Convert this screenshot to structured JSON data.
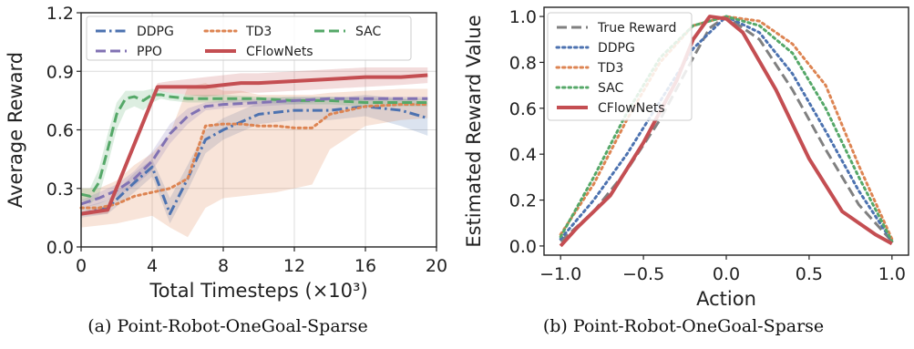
{
  "captions": [
    "(a) Point-Robot-OneGoal-Sparse",
    "(b) Point-Robot-OneGoal-Sparse"
  ],
  "colors": {
    "DDPG": "#4c72b0",
    "TD3": "#dd8452",
    "SAC": "#55a868",
    "PPO": "#8172b3",
    "CFlowNets": "#c44e52",
    "True Reward": "#808080"
  },
  "chart_data": [
    {
      "type": "line",
      "xlabel": "Total Timesteps (×10³)",
      "ylabel": "Average Reward",
      "xlim": [
        0,
        20
      ],
      "ylim": [
        0,
        1.2
      ],
      "xticks": [
        0,
        4,
        8,
        12,
        16,
        20
      ],
      "yticks": [
        0.0,
        0.3,
        0.6,
        0.9,
        1.2
      ],
      "xtick_labels": [
        "0",
        "4",
        "8",
        "12",
        "16",
        "20"
      ],
      "ytick_labels": [
        "0.0",
        "0.3",
        "0.6",
        "0.9",
        "1.2"
      ],
      "grid": true,
      "legend": "top",
      "series": [
        {
          "name": "DDPG",
          "dash": "dashdot",
          "x": [
            0,
            1.5,
            3,
            4,
            5,
            6,
            7,
            8,
            10,
            12,
            14,
            16,
            18,
            19.5
          ],
          "y": [
            0.17,
            0.2,
            0.33,
            0.41,
            0.17,
            0.35,
            0.55,
            0.6,
            0.68,
            0.7,
            0.7,
            0.72,
            0.7,
            0.66
          ],
          "band_upper": [
            0.2,
            0.24,
            0.38,
            0.45,
            0.25,
            0.42,
            0.6,
            0.66,
            0.74,
            0.76,
            0.76,
            0.78,
            0.76,
            0.74
          ],
          "band_lower": [
            0.15,
            0.17,
            0.28,
            0.36,
            0.12,
            0.29,
            0.48,
            0.55,
            0.63,
            0.65,
            0.65,
            0.67,
            0.62,
            0.57
          ]
        },
        {
          "name": "TD3",
          "dash": "dotted",
          "x": [
            0,
            1,
            2,
            3,
            4,
            5,
            6,
            7,
            8,
            9,
            10,
            11,
            12,
            13,
            14,
            16,
            18,
            19.5
          ],
          "y": [
            0.2,
            0.2,
            0.22,
            0.26,
            0.28,
            0.3,
            0.35,
            0.62,
            0.63,
            0.63,
            0.62,
            0.62,
            0.61,
            0.61,
            0.68,
            0.72,
            0.73,
            0.73
          ],
          "band_upper": [
            0.3,
            0.3,
            0.34,
            0.42,
            0.48,
            0.58,
            0.82,
            0.84,
            0.8,
            0.8,
            0.78,
            0.78,
            0.78,
            0.78,
            0.79,
            0.8,
            0.81,
            0.81
          ],
          "band_lower": [
            0.1,
            0.11,
            0.12,
            0.14,
            0.16,
            0.1,
            0.05,
            0.2,
            0.25,
            0.26,
            0.27,
            0.28,
            0.3,
            0.32,
            0.5,
            0.62,
            0.65,
            0.66
          ]
        },
        {
          "name": "SAC",
          "dash": "dashed",
          "x": [
            0,
            0.5,
            1,
            1.5,
            2,
            2.5,
            3,
            3.5,
            4,
            4.5,
            5,
            6,
            8,
            10,
            12,
            14,
            16,
            18,
            19.5
          ],
          "y": [
            0.27,
            0.26,
            0.33,
            0.5,
            0.68,
            0.76,
            0.77,
            0.75,
            0.78,
            0.78,
            0.77,
            0.76,
            0.76,
            0.76,
            0.75,
            0.75,
            0.74,
            0.74,
            0.74
          ],
          "band_upper": [
            0.3,
            0.3,
            0.4,
            0.58,
            0.74,
            0.8,
            0.8,
            0.8,
            0.81,
            0.8,
            0.79,
            0.78,
            0.78,
            0.77,
            0.77,
            0.77,
            0.76,
            0.76,
            0.76
          ],
          "band_lower": [
            0.24,
            0.22,
            0.26,
            0.42,
            0.6,
            0.7,
            0.72,
            0.7,
            0.74,
            0.76,
            0.75,
            0.74,
            0.74,
            0.74,
            0.73,
            0.73,
            0.72,
            0.72,
            0.72
          ]
        },
        {
          "name": "PPO",
          "dash": "dashed",
          "x": [
            0,
            1,
            2,
            3,
            4,
            5,
            6,
            7,
            8,
            10,
            12,
            14,
            16,
            18,
            19.5
          ],
          "y": [
            0.22,
            0.25,
            0.29,
            0.35,
            0.44,
            0.58,
            0.67,
            0.72,
            0.73,
            0.74,
            0.75,
            0.76,
            0.76,
            0.76,
            0.76
          ],
          "band_upper": [
            0.24,
            0.28,
            0.32,
            0.39,
            0.49,
            0.63,
            0.71,
            0.74,
            0.75,
            0.76,
            0.77,
            0.77,
            0.77,
            0.77,
            0.77
          ],
          "band_lower": [
            0.2,
            0.22,
            0.26,
            0.31,
            0.39,
            0.53,
            0.63,
            0.7,
            0.71,
            0.72,
            0.73,
            0.75,
            0.75,
            0.75,
            0.75
          ]
        },
        {
          "name": "CFlowNets",
          "dash": "solid",
          "x": [
            0,
            1.5,
            4.3,
            5,
            6,
            7,
            8,
            9,
            10,
            12,
            14,
            16,
            18,
            19.5
          ],
          "y": [
            0.17,
            0.19,
            0.82,
            0.82,
            0.82,
            0.82,
            0.83,
            0.84,
            0.84,
            0.85,
            0.86,
            0.87,
            0.87,
            0.88
          ],
          "band_upper": [
            0.18,
            0.21,
            0.84,
            0.85,
            0.86,
            0.87,
            0.88,
            0.89,
            0.89,
            0.9,
            0.91,
            0.92,
            0.92,
            0.92
          ],
          "band_lower": [
            0.16,
            0.17,
            0.8,
            0.79,
            0.78,
            0.77,
            0.78,
            0.79,
            0.79,
            0.8,
            0.81,
            0.82,
            0.83,
            0.84
          ]
        }
      ]
    },
    {
      "type": "line",
      "xlabel": "Action",
      "ylabel": "Estimated Reward Value",
      "xlim": [
        -1.1,
        1.1
      ],
      "ylim": [
        -0.04,
        1.04
      ],
      "xticks": [
        -1.0,
        -0.5,
        0.0,
        0.5,
        1.0
      ],
      "yticks": [
        0.0,
        0.2,
        0.4,
        0.6,
        0.8,
        1.0
      ],
      "xtick_labels": [
        "−1.0",
        "−0.5",
        "0.0",
        "0.5",
        "1.0"
      ],
      "ytick_labels": [
        "0.0",
        "0.2",
        "0.4",
        "0.6",
        "0.8",
        "1.0"
      ],
      "grid": false,
      "legend": "top-left",
      "series": [
        {
          "name": "True Reward",
          "dash": "dashed",
          "x": [
            -1,
            -0.8,
            -0.6,
            -0.4,
            -0.2,
            -0.1,
            0,
            0.2,
            0.4,
            0.6,
            0.8,
            1
          ],
          "y": [
            0.02,
            0.15,
            0.33,
            0.55,
            0.82,
            0.95,
            1.0,
            0.9,
            0.68,
            0.42,
            0.18,
            0.02
          ]
        },
        {
          "name": "DDPG",
          "dash": "dotted",
          "x": [
            -1,
            -0.8,
            -0.6,
            -0.4,
            -0.2,
            0,
            0.2,
            0.4,
            0.6,
            0.8,
            1
          ],
          "y": [
            0.03,
            0.2,
            0.4,
            0.63,
            0.86,
            1.0,
            0.93,
            0.75,
            0.5,
            0.24,
            0.02
          ]
        },
        {
          "name": "TD3",
          "dash": "dotted",
          "x": [
            -1,
            -0.8,
            -0.6,
            -0.4,
            -0.2,
            0,
            0.2,
            0.4,
            0.6,
            0.8,
            1
          ],
          "y": [
            0.05,
            0.27,
            0.55,
            0.8,
            0.96,
            1.0,
            0.98,
            0.88,
            0.7,
            0.35,
            0.03
          ]
        },
        {
          "name": "SAC",
          "dash": "dotted",
          "x": [
            -1,
            -0.8,
            -0.6,
            -0.4,
            -0.2,
            0,
            0.2,
            0.4,
            0.6,
            0.8,
            1
          ],
          "y": [
            0.04,
            0.3,
            0.58,
            0.82,
            0.96,
            1.0,
            0.96,
            0.84,
            0.6,
            0.3,
            0.02
          ]
        },
        {
          "name": "CFlowNets",
          "dash": "solid",
          "x": [
            -1,
            -0.9,
            -0.7,
            -0.5,
            -0.3,
            -0.2,
            -0.1,
            0,
            0.1,
            0.3,
            0.5,
            0.7,
            0.9,
            1
          ],
          "y": [
            0.0,
            0.08,
            0.22,
            0.45,
            0.72,
            0.9,
            1.0,
            0.99,
            0.93,
            0.68,
            0.38,
            0.15,
            0.05,
            0.01
          ]
        }
      ]
    }
  ]
}
